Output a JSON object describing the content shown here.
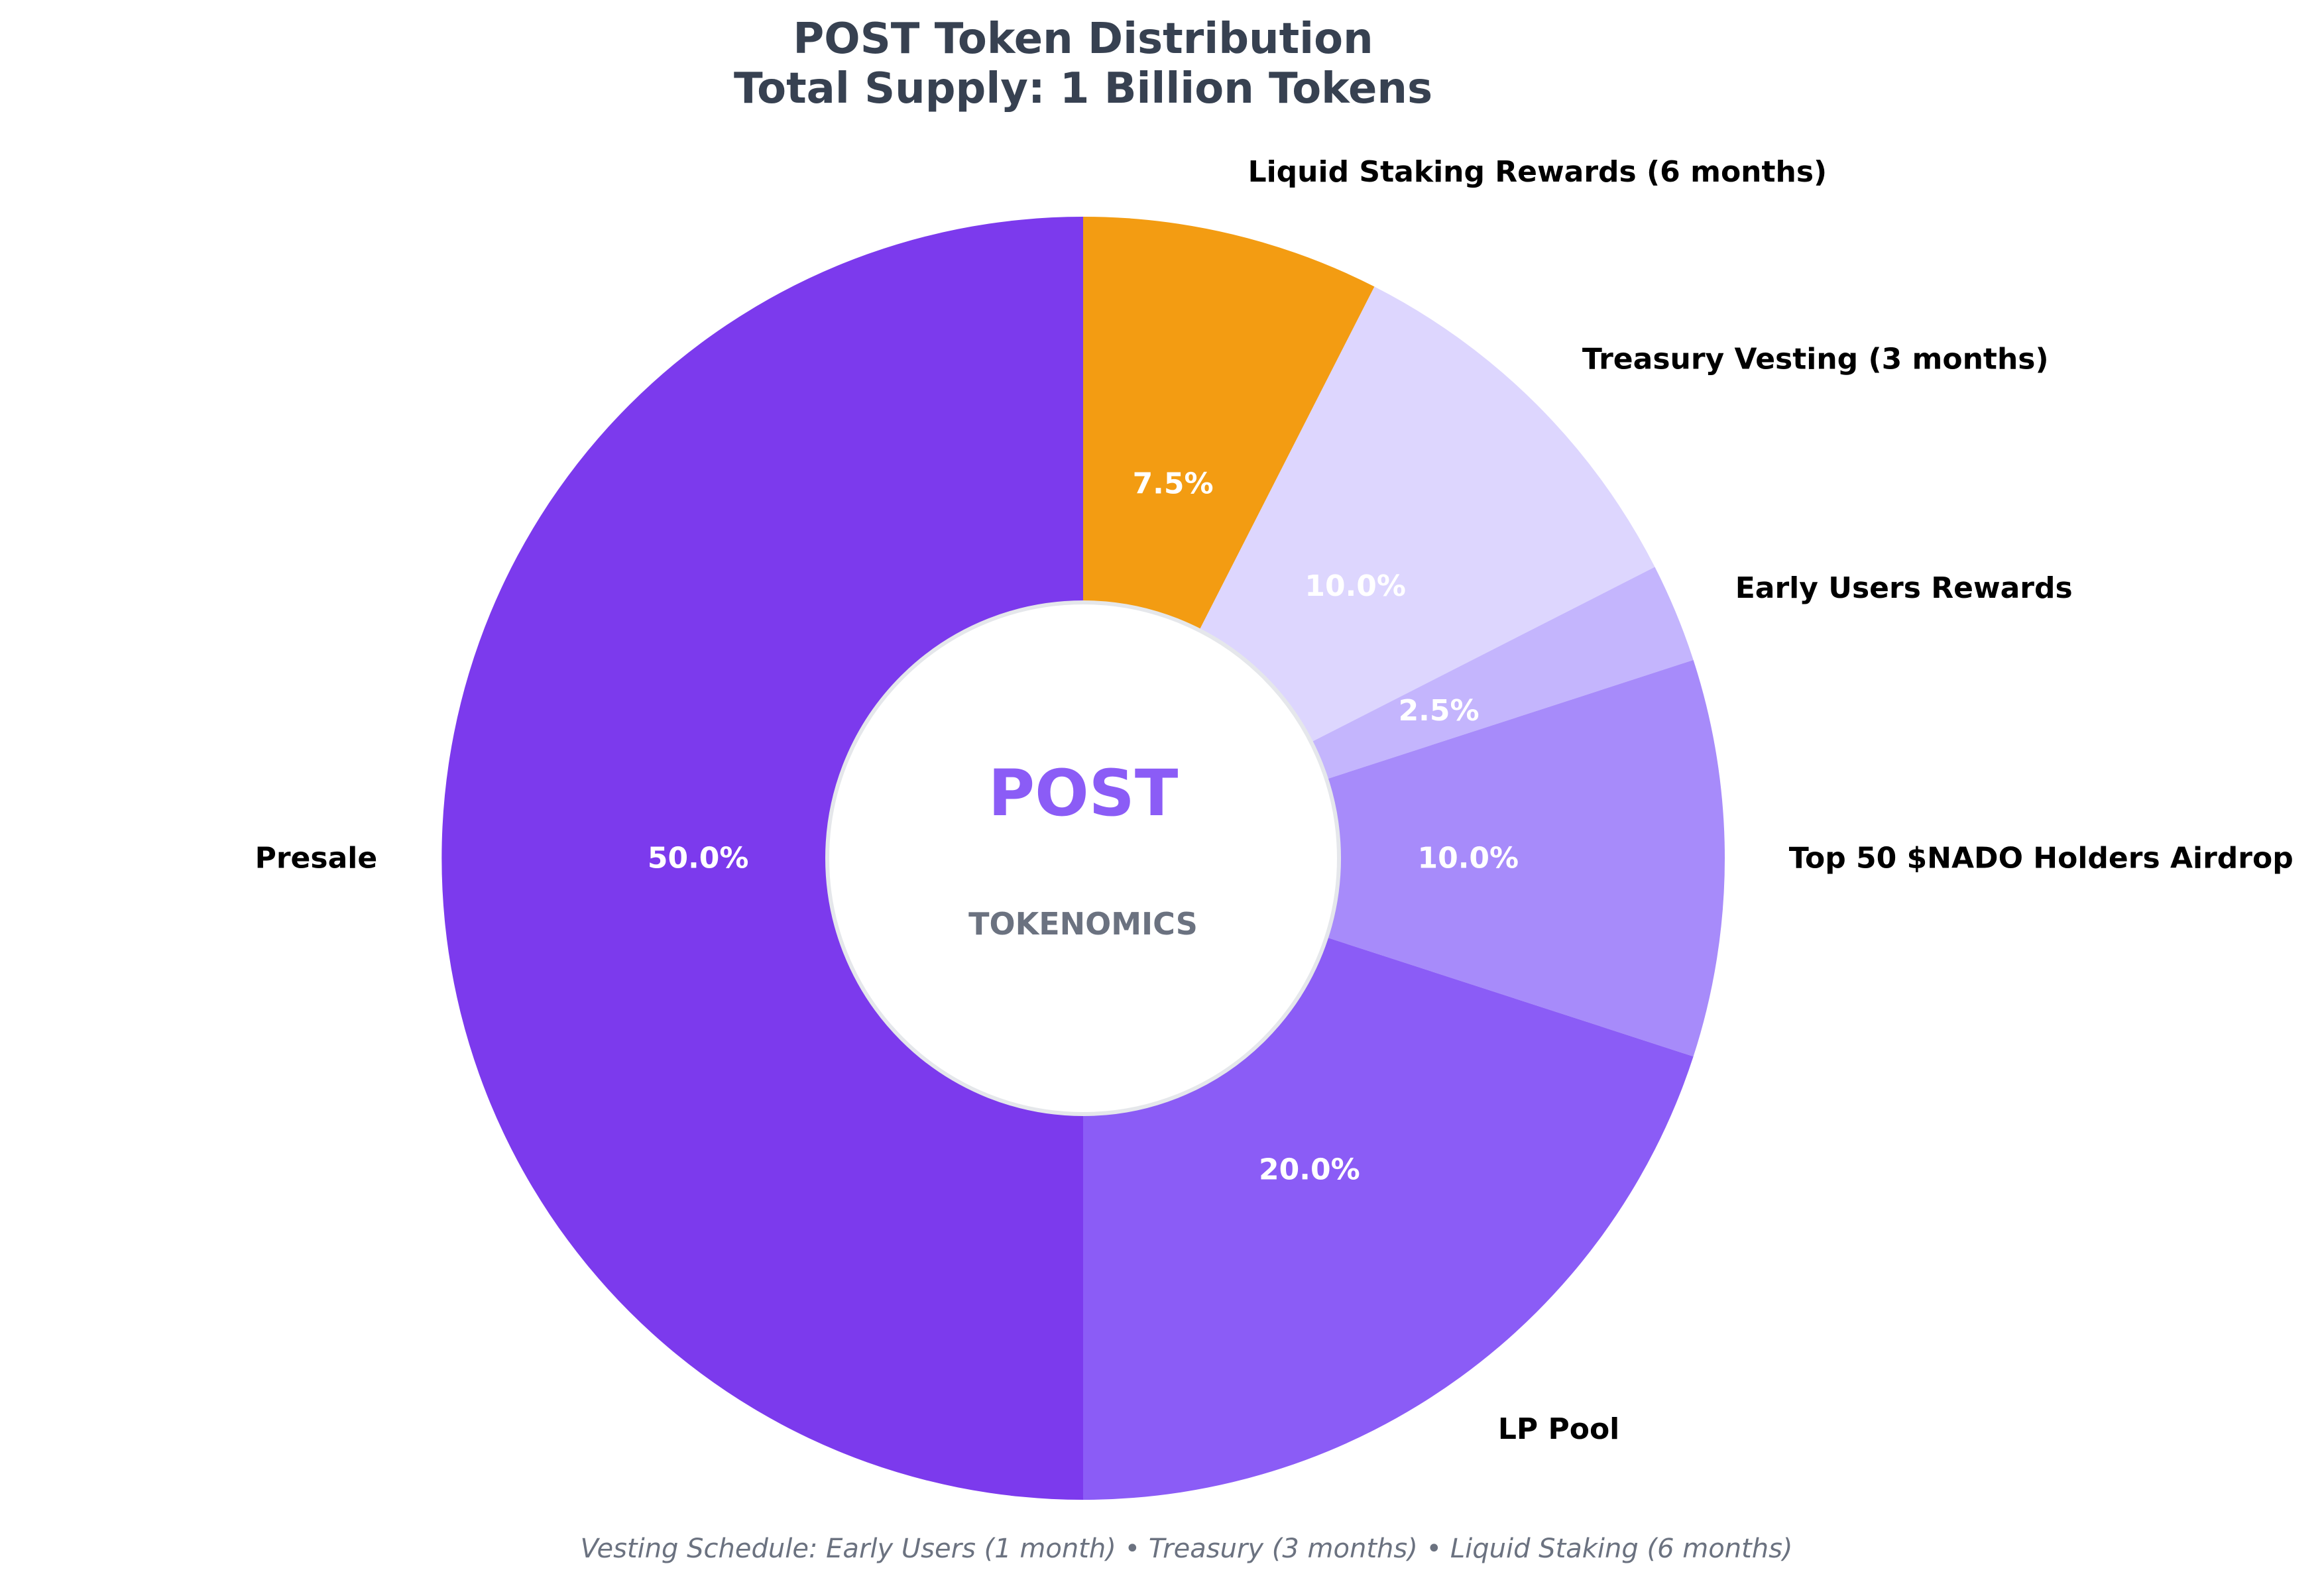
{
  "chart_data": {
    "type": "pie",
    "style": "donut",
    "title_lines": [
      "POST Token Distribution",
      "Total Supply: 1 Billion Tokens"
    ],
    "categories": [
      "Liquid Staking Rewards (6 months)",
      "Treasury Vesting (3 months)",
      "Early Users Rewards",
      "Top 50 $NADO Holders Airdrop",
      "LP Pool",
      "Presale"
    ],
    "values": [
      7.5,
      10.0,
      2.5,
      10.0,
      20.0,
      50.0
    ],
    "value_labels": [
      "7.5%",
      "10.0%",
      "2.5%",
      "10.0%",
      "20.0%",
      "50.0%"
    ],
    "colors": [
      "#f39c12",
      "#ddd6fe",
      "#c4b5fd",
      "#a78bfa",
      "#8b5cf6",
      "#7c3aed"
    ],
    "center_title": "POST",
    "center_subtitle": "TOKENOMICS",
    "start_angle_deg": 90,
    "direction": "clockwise",
    "footnote": "Vesting Schedule: Early Users (1 month) • Treasury (3 months) • Liquid Staking (6 months)"
  }
}
